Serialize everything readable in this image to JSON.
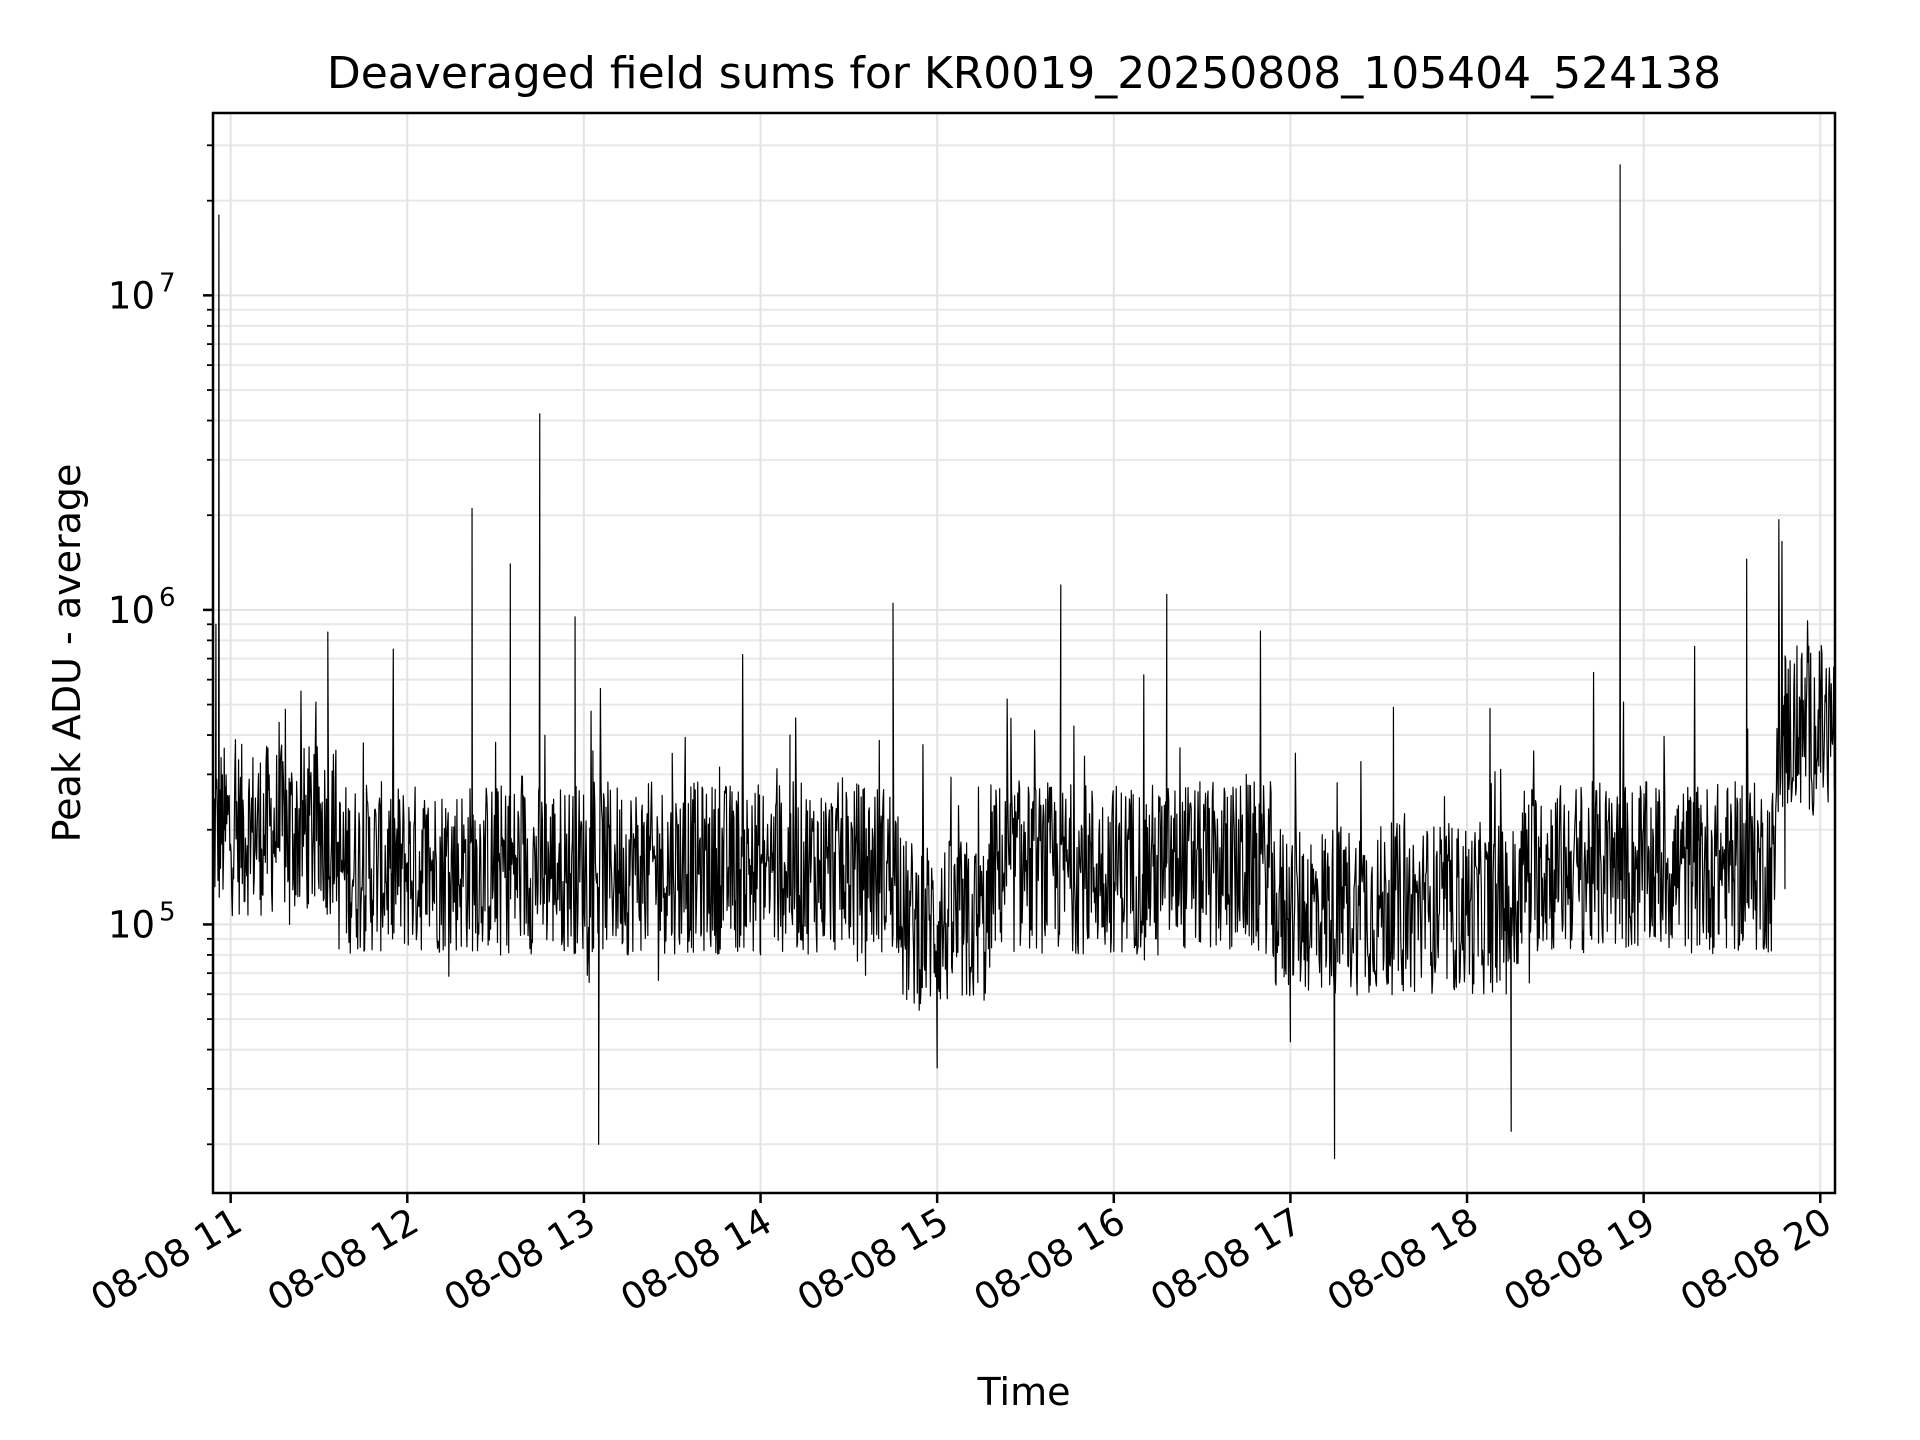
{
  "chart_data": {
    "type": "line",
    "title": "Deaveraged field sums for KR0019_20250808_105404_524138",
    "xlabel": "Time",
    "ylabel": "Peak ADU - average",
    "x_scale": "time",
    "y_scale": "log",
    "xlim": [
      "2025-08-08 10:54",
      "2025-08-08 20:05"
    ],
    "ylim": [
      14000,
      38000000
    ],
    "grid": true,
    "x_ticks": [
      "08-08 11",
      "08-08 12",
      "08-08 13",
      "08-08 14",
      "08-08 15",
      "08-08 16",
      "08-08 17",
      "08-08 18",
      "08-08 19",
      "08-08 20"
    ],
    "x_tick_times": [
      "2025-08-08 11:00",
      "2025-08-08 12:00",
      "2025-08-08 13:00",
      "2025-08-08 14:00",
      "2025-08-08 15:00",
      "2025-08-08 16:00",
      "2025-08-08 17:00",
      "2025-08-08 18:00",
      "2025-08-08 19:00",
      "2025-08-08 20:00"
    ],
    "y_ticks": [
      {
        "value": 100000,
        "base": "10",
        "exp": "5"
      },
      {
        "value": 1000000,
        "base": "10",
        "exp": "6"
      },
      {
        "value": 10000000,
        "base": "10",
        "exp": "7"
      }
    ],
    "series": [
      {
        "color": "#000000",
        "points": [
          [
            "2025-08-08 10:55",
            900000
          ],
          [
            "2025-08-08 10:56",
            18000000
          ],
          [
            "2025-08-08 10:58",
            200000
          ],
          [
            "2025-08-08 11:03",
            150000
          ],
          [
            "2025-08-08 11:10",
            120000
          ],
          [
            "2025-08-08 11:20",
            100000
          ],
          [
            "2025-08-08 11:30",
            130000
          ],
          [
            "2025-08-08 11:33",
            850000
          ],
          [
            "2025-08-08 11:40",
            110000
          ],
          [
            "2025-08-08 11:55",
            90000
          ],
          [
            "2025-08-08 12:10",
            110000
          ],
          [
            "2025-08-08 12:22",
            2100000
          ],
          [
            "2025-08-08 12:35",
            1400000
          ],
          [
            "2025-08-08 12:45",
            4200000
          ],
          [
            "2025-08-08 12:50",
            150000
          ],
          [
            "2025-08-08 12:57",
            950000
          ],
          [
            "2025-08-08 13:05",
            20000
          ],
          [
            "2025-08-08 13:15",
            80000
          ],
          [
            "2025-08-08 13:30",
            350000
          ],
          [
            "2025-08-08 13:45",
            100000
          ],
          [
            "2025-08-08 14:00",
            80000
          ],
          [
            "2025-08-08 14:10",
            400000
          ],
          [
            "2025-08-08 14:30",
            100000
          ],
          [
            "2025-08-08 14:45",
            1050000
          ],
          [
            "2025-08-08 14:55",
            150000
          ],
          [
            "2025-08-08 15:00",
            35000
          ],
          [
            "2025-08-08 15:10",
            60000
          ],
          [
            "2025-08-08 15:25",
            150000
          ],
          [
            "2025-08-08 15:42",
            1200000
          ],
          [
            "2025-08-08 15:55",
            200000
          ],
          [
            "2025-08-08 16:15",
            80000
          ],
          [
            "2025-08-08 16:18",
            1120000
          ],
          [
            "2025-08-08 16:30",
            120000
          ],
          [
            "2025-08-08 16:45",
            300000
          ],
          [
            "2025-08-08 17:00",
            100000
          ],
          [
            "2025-08-08 17:15",
            18000
          ],
          [
            "2025-08-08 17:35",
            490000
          ],
          [
            "2025-08-08 17:50",
            90000
          ],
          [
            "2025-08-08 18:10",
            80000
          ],
          [
            "2025-08-08 18:15",
            22000
          ],
          [
            "2025-08-08 18:30",
            150000
          ],
          [
            "2025-08-08 18:45",
            200000
          ],
          [
            "2025-08-08 18:52",
            26000000
          ],
          [
            "2025-08-08 19:05",
            130000
          ],
          [
            "2025-08-08 19:20",
            150000
          ],
          [
            "2025-08-08 19:35",
            1450000
          ],
          [
            "2025-08-08 19:48",
            130000
          ],
          [
            "2025-08-08 19:52",
            450000
          ],
          [
            "2025-08-08 20:00",
            600000
          ],
          [
            "2025-08-08 20:05",
            500000
          ]
        ]
      }
    ]
  }
}
